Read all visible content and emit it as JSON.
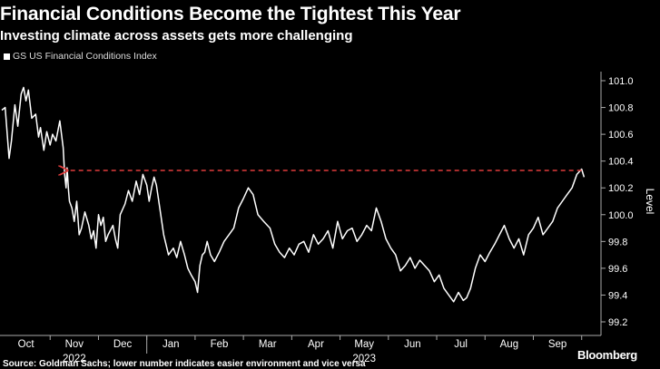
{
  "header": {
    "title": "Financial Conditions Become the Tightest This Year",
    "subtitle": "Investing climate across assets gets more challenging"
  },
  "footer": {
    "source": "Source: Goldman Sachs; lower number indicates easier environment and vice versa",
    "brand": "Bloomberg"
  },
  "colors": {
    "background": "#000000",
    "series": "#ffffff",
    "annotation": "#e03c3c",
    "grid": "#444444"
  },
  "chart_data": {
    "type": "line",
    "title": "Financial Conditions Become the Tightest This Year",
    "subtitle": "Investing climate across assets gets more challenging",
    "ylabel": "Level",
    "xlabel": "",
    "ylim": [
      99.2,
      101.0
    ],
    "yticks": [
      "99.2",
      "99.4",
      "99.6",
      "99.8",
      "100.0",
      "100.2",
      "100.4",
      "100.6",
      "100.8",
      "101.0"
    ],
    "grid": false,
    "legend_position": "top-left",
    "xlim": [
      0,
      12.4
    ],
    "xtick_labels": [
      {
        "label": "Oct",
        "x": 0.5
      },
      {
        "label": "Nov",
        "x": 1.5
      },
      {
        "label": "Dec",
        "x": 2.5
      },
      {
        "label": "Jan",
        "x": 3.5
      },
      {
        "label": "Feb",
        "x": 4.5
      },
      {
        "label": "Mar",
        "x": 5.5
      },
      {
        "label": "Apr",
        "x": 6.5
      },
      {
        "label": "May",
        "x": 7.5
      },
      {
        "label": "Jun",
        "x": 8.5
      },
      {
        "label": "Jul",
        "x": 9.5
      },
      {
        "label": "Aug",
        "x": 10.5
      },
      {
        "label": "Sep",
        "x": 11.5
      }
    ],
    "year_labels": [
      {
        "label": "2022",
        "x": 1.5
      },
      {
        "label": "2023",
        "x": 7.5
      }
    ],
    "series": [
      {
        "name": "GS US Financial Conditions Index",
        "x": [
          0.0,
          0.07,
          0.15,
          0.2,
          0.27,
          0.33,
          0.4,
          0.45,
          0.5,
          0.55,
          0.62,
          0.7,
          0.76,
          0.8,
          0.87,
          0.93,
          1.0,
          1.05,
          1.12,
          1.2,
          1.27,
          1.3,
          1.33,
          1.35,
          1.38,
          1.4,
          1.45,
          1.5,
          1.55,
          1.6,
          1.65,
          1.72,
          1.8,
          1.85,
          1.9,
          1.95,
          2.0,
          2.05,
          2.1,
          2.15,
          2.2,
          2.3,
          2.35,
          2.4,
          2.45,
          2.55,
          2.62,
          2.7,
          2.78,
          2.85,
          2.92,
          3.0,
          3.05,
          3.1,
          3.15,
          3.2,
          3.27,
          3.35,
          3.45,
          3.55,
          3.62,
          3.7,
          3.78,
          3.85,
          3.92,
          4.0,
          4.05,
          4.1,
          4.15,
          4.2,
          4.25,
          4.32,
          4.4,
          4.5,
          4.6,
          4.7,
          4.8,
          4.9,
          5.0,
          5.1,
          5.2,
          5.3,
          5.42,
          5.55,
          5.65,
          5.75,
          5.85,
          5.95,
          6.05,
          6.15,
          6.25,
          6.35,
          6.45,
          6.55,
          6.65,
          6.75,
          6.85,
          6.95,
          7.05,
          7.15,
          7.25,
          7.35,
          7.45,
          7.55,
          7.65,
          7.75,
          7.85,
          7.95,
          8.05,
          8.15,
          8.25,
          8.35,
          8.45,
          8.55,
          8.65,
          8.75,
          8.85,
          8.95,
          9.05,
          9.15,
          9.25,
          9.35,
          9.45,
          9.55,
          9.62,
          9.7,
          9.8,
          9.9,
          10.0,
          10.1,
          10.2,
          10.3,
          10.4,
          10.5,
          10.6,
          10.7,
          10.8,
          10.9,
          11.0,
          11.1,
          11.2,
          11.3,
          11.4,
          11.5,
          11.6,
          11.7,
          11.8,
          11.9,
          12.0,
          12.05
        ],
        "values": [
          100.78,
          100.8,
          100.42,
          100.55,
          100.82,
          100.66,
          100.9,
          100.95,
          100.85,
          100.93,
          100.72,
          100.75,
          100.58,
          100.65,
          100.48,
          100.62,
          100.52,
          100.6,
          100.55,
          100.7,
          100.5,
          100.3,
          100.2,
          100.35,
          100.18,
          100.1,
          100.05,
          99.95,
          100.1,
          99.85,
          99.9,
          100.02,
          99.92,
          99.82,
          99.88,
          99.75,
          100.0,
          99.92,
          99.98,
          99.8,
          99.85,
          99.92,
          99.82,
          99.75,
          100.0,
          100.08,
          100.18,
          100.1,
          100.25,
          100.15,
          100.3,
          100.22,
          100.1,
          100.2,
          100.28,
          100.22,
          100.05,
          99.85,
          99.7,
          99.75,
          99.68,
          99.8,
          99.7,
          99.6,
          99.55,
          99.5,
          99.42,
          99.62,
          99.7,
          99.72,
          99.8,
          99.7,
          99.65,
          99.72,
          99.8,
          99.85,
          99.9,
          100.05,
          100.12,
          100.2,
          100.15,
          100.0,
          99.95,
          99.9,
          99.78,
          99.72,
          99.68,
          99.75,
          99.7,
          99.78,
          99.8,
          99.72,
          99.85,
          99.78,
          99.82,
          99.88,
          99.75,
          99.95,
          99.82,
          99.88,
          99.9,
          99.8,
          99.85,
          99.92,
          99.88,
          100.05,
          99.95,
          99.82,
          99.75,
          99.7,
          99.58,
          99.62,
          99.68,
          99.6,
          99.66,
          99.62,
          99.58,
          99.5,
          99.55,
          99.45,
          99.4,
          99.35,
          99.42,
          99.36,
          99.38,
          99.45,
          99.6,
          99.7,
          99.65,
          99.72,
          99.78,
          99.85,
          99.92,
          99.82,
          99.75,
          99.82,
          99.7,
          99.85,
          99.9,
          99.98,
          99.85,
          99.9,
          99.95,
          100.05,
          100.1,
          100.15,
          100.2,
          100.3,
          100.34,
          100.28
        ],
        "color": "#ffffff"
      }
    ],
    "annotation": {
      "type": "dashed-arrow",
      "y": 100.33,
      "x_from": 12.0,
      "x_to": 1.3,
      "color": "#e03c3c"
    }
  }
}
